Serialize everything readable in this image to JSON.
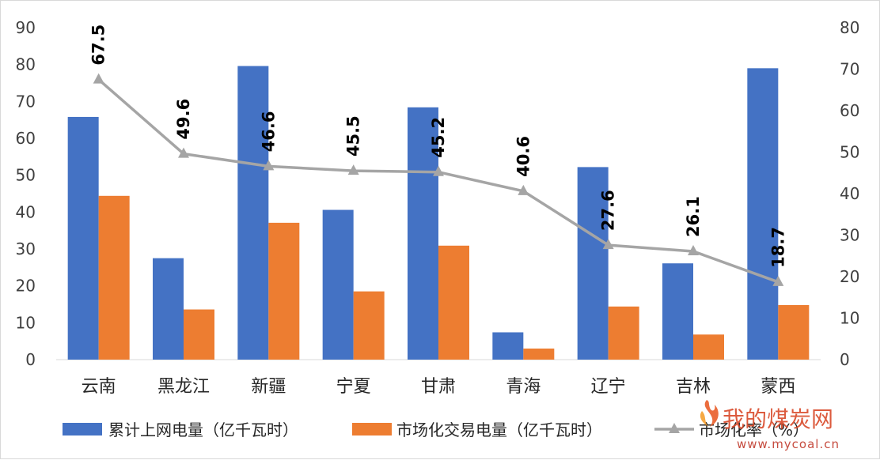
{
  "chart_data": {
    "type": "bar",
    "combo": "bar+line, dual axis",
    "categories": [
      "云南",
      "黑龙江",
      "新疆",
      "宁夏",
      "甘肃",
      "青海",
      "辽宁",
      "吉林",
      "蒙西"
    ],
    "series": [
      {
        "name": "累计上网电量（亿千瓦时）",
        "type": "bar",
        "axis": "left",
        "color": "#4472C4",
        "values": [
          65.8,
          27.5,
          79.6,
          40.6,
          68.4,
          7.4,
          52.2,
          26.1,
          79.0
        ]
      },
      {
        "name": "市场化交易电量（亿千瓦时）",
        "type": "bar",
        "axis": "left",
        "color": "#ED7D31",
        "values": [
          44.4,
          13.6,
          37.1,
          18.5,
          30.9,
          3.0,
          14.4,
          6.8,
          14.8
        ]
      },
      {
        "name": "市场化率（%）",
        "type": "line",
        "axis": "right",
        "color": "#A5A5A5",
        "values": [
          67.5,
          49.6,
          46.6,
          45.5,
          45.2,
          40.6,
          27.6,
          26.1,
          18.7
        ],
        "labels": [
          "67.5",
          "49.6",
          "46.6",
          "45.5",
          "45.2",
          "40.6",
          "27.6",
          "26.1",
          "18.7"
        ]
      }
    ],
    "ylim_left": [
      0,
      90
    ],
    "yticks_left": [
      "0",
      "10",
      "20",
      "30",
      "40",
      "50",
      "60",
      "70",
      "80",
      "90"
    ],
    "ylim_right": [
      0,
      80
    ],
    "yticks_right": [
      "0",
      "10",
      "20",
      "30",
      "40",
      "50",
      "60",
      "70",
      "80"
    ],
    "grid": false,
    "legend_position": "bottom"
  },
  "watermark": {
    "text": "我的煤炭网",
    "url": "www.mycoal.cn"
  }
}
